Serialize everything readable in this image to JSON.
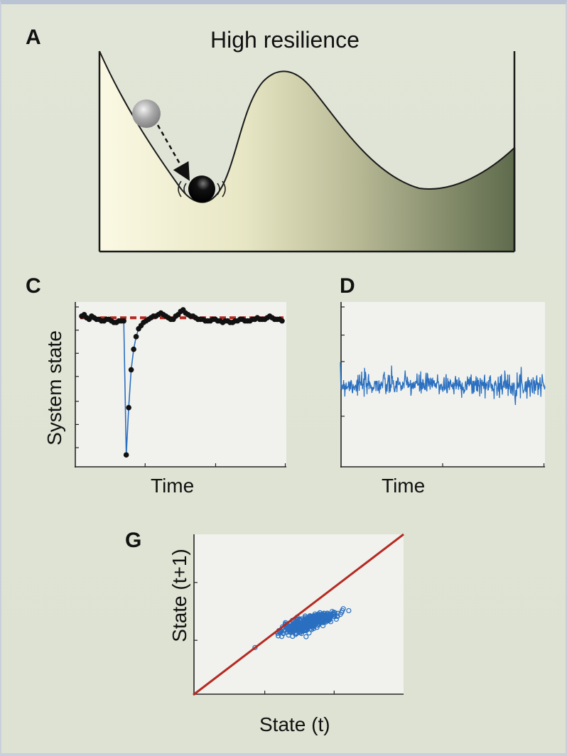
{
  "panel_a": {
    "letter": "A",
    "title": "High resilience"
  },
  "panel_c": {
    "letter": "C",
    "xlabel": "Time",
    "ylabel": "System state"
  },
  "panel_d": {
    "letter": "D",
    "xlabel": "Time"
  },
  "panel_g": {
    "letter": "G",
    "xlabel": "State (t)",
    "ylabel": "State (t+1)"
  },
  "colors": {
    "trace_blue": "#2a6fc0",
    "reference_red": "#b52a22",
    "marker_black": "#111111",
    "plot_bg": "#f1f2ee"
  },
  "chart_data": [
    {
      "id": "C",
      "type": "line",
      "xlabel": "Time",
      "ylabel": "System state",
      "equilibrium": 0.95,
      "perturbation_min": 0.08,
      "ylim": [
        0,
        1.05
      ],
      "xlim": [
        0,
        100
      ],
      "series": [
        {
          "values": [
            0.96,
            0.97,
            0.95,
            0.94,
            0.96,
            0.95,
            0.94,
            0.94,
            0.93,
            0.93,
            0.94,
            0.94,
            0.93,
            0.92,
            0.92,
            0.93,
            0.93,
            0.93,
            0.08,
            0.38,
            0.62,
            0.75,
            0.83,
            0.88,
            0.9,
            0.92,
            0.93,
            0.94,
            0.95,
            0.96,
            0.96,
            0.97,
            0.98,
            0.97,
            0.96,
            0.95,
            0.94,
            0.94,
            0.96,
            0.97,
            0.99,
            1.0,
            0.98,
            0.97,
            0.96,
            0.96,
            0.95,
            0.94,
            0.94,
            0.94,
            0.93,
            0.93,
            0.93,
            0.94,
            0.94,
            0.93,
            0.93,
            0.92,
            0.93,
            0.93,
            0.92,
            0.92,
            0.93,
            0.93,
            0.94,
            0.94,
            0.93,
            0.93,
            0.93,
            0.94,
            0.94,
            0.95,
            0.94,
            0.94,
            0.94,
            0.95,
            0.96,
            0.95,
            0.94,
            0.94,
            0.94,
            0.93
          ]
        }
      ]
    },
    {
      "id": "D",
      "type": "line",
      "xlabel": "Time",
      "mean": 0.5,
      "noise_sd": 0.035,
      "ylim": [
        0,
        1
      ],
      "n_points": 500
    },
    {
      "id": "G",
      "type": "scatter",
      "xlabel": "State (t)",
      "ylabel": "State (t+1)",
      "xlim": [
        0,
        1
      ],
      "ylim": [
        0,
        1
      ],
      "cluster_center": [
        0.55,
        0.45
      ],
      "cluster_spread": [
        0.06,
        0.045
      ],
      "n_points": 500,
      "reference_line": "y = x"
    }
  ]
}
